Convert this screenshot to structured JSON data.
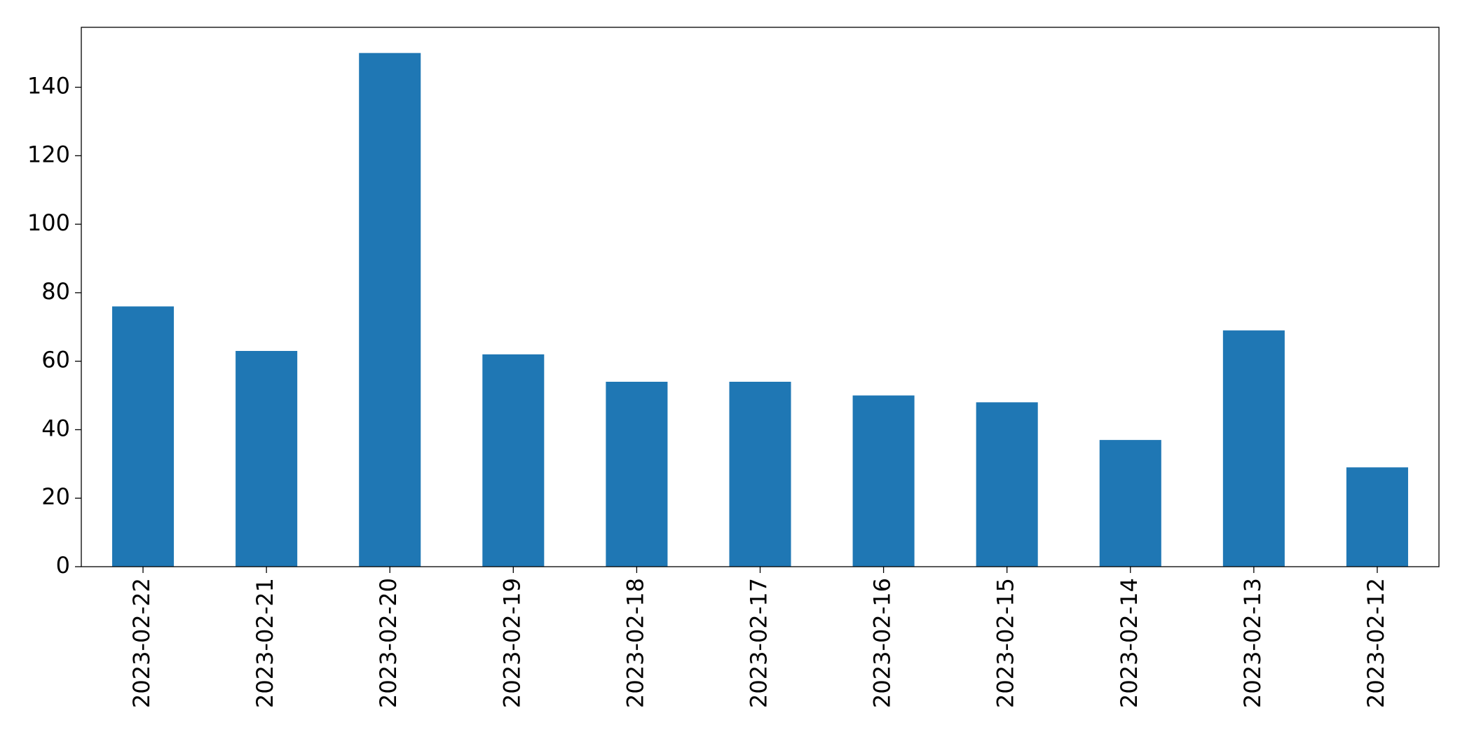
{
  "chart_data": {
    "type": "bar",
    "categories": [
      "2023-02-22",
      "2023-02-21",
      "2023-02-20",
      "2023-02-19",
      "2023-02-18",
      "2023-02-17",
      "2023-02-16",
      "2023-02-15",
      "2023-02-14",
      "2023-02-13",
      "2023-02-12"
    ],
    "values": [
      76,
      63,
      150,
      62,
      54,
      54,
      50,
      48,
      37,
      69,
      29
    ],
    "color": "#1f77b4",
    "ylim": [
      0,
      157.5
    ],
    "yticks": [
      0,
      20,
      40,
      60,
      80,
      100,
      120,
      140
    ],
    "grid": false
  }
}
